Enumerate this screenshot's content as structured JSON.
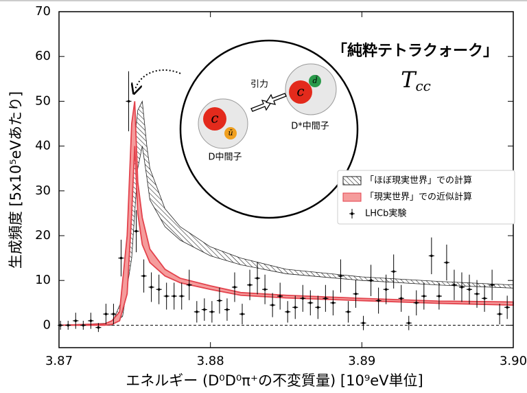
{
  "chart_data": {
    "type": "band-errorbar",
    "xlabel": "エネルギー (D⁰D⁰π⁺の不変質量) [10⁹eV単位]",
    "ylabel": "生成頻度 [5x10⁵eVあたり]",
    "xlim": [
      3.87,
      3.9
    ],
    "xticks": [
      3.87,
      3.88,
      3.89,
      {
        "value": 3.9,
        "label": "3.90"
      }
    ],
    "ylim": [
      -5,
      70
    ],
    "yticks": [
      0,
      10,
      20,
      30,
      40,
      50,
      60,
      70
    ],
    "hline": 0,
    "legend": "right",
    "series": [
      {
        "name": "「ほぼ現実世界」での計算",
        "kind": "band",
        "hatch": true,
        "color": "#222222",
        "x": [
          3.87,
          3.8735,
          3.8742,
          3.8748,
          3.8752,
          3.8755,
          3.8758,
          3.876,
          3.877,
          3.878,
          3.88,
          3.882,
          3.885,
          3.89,
          3.895,
          3.9
        ],
        "lower": [
          0,
          0,
          2,
          15,
          35,
          40,
          33,
          28,
          22,
          19,
          15.5,
          13.5,
          11.5,
          10,
          9,
          8.3
        ],
        "upper": [
          0,
          0.5,
          6,
          35,
          48,
          50,
          40,
          35,
          26,
          22,
          17.5,
          15,
          12.5,
          10.8,
          9.8,
          9
        ]
      },
      {
        "name": "「現実世界」での近似計算",
        "kind": "band",
        "hatch": false,
        "color": "#f59c9c",
        "edgecolor": "#e3424c",
        "x": [
          3.87,
          3.873,
          3.8735,
          3.874,
          3.8745,
          3.8748,
          3.875,
          3.8752,
          3.8755,
          3.876,
          3.877,
          3.878,
          3.88,
          3.882,
          3.885,
          3.89,
          3.895,
          3.9
        ],
        "lower": [
          0,
          0,
          0.2,
          1,
          7,
          25,
          40,
          25,
          18,
          14,
          11,
          9.5,
          8,
          6.7,
          6.1,
          5.5,
          4.9,
          4.5
        ],
        "upper": [
          0,
          0.3,
          1,
          3,
          20,
          45,
          50,
          32,
          24,
          17,
          12.5,
          10.5,
          8.8,
          7.3,
          6.7,
          6,
          5.4,
          5.2
        ]
      },
      {
        "name": "LHCb実験",
        "kind": "errorbar",
        "color": "#000000",
        "x": [
          3.8701,
          3.8706,
          3.8711,
          3.8716,
          3.8721,
          3.8726,
          3.8731,
          3.8736,
          3.8741,
          3.8746,
          3.8751,
          3.8756,
          3.8761,
          3.8766,
          3.8771,
          3.8776,
          3.8781,
          3.8786,
          3.8791,
          3.8796,
          3.8801,
          3.8806,
          3.8811,
          3.8816,
          3.8821,
          3.8826,
          3.8831,
          3.8836,
          3.8841,
          3.8846,
          3.8851,
          3.8856,
          3.8861,
          3.8866,
          3.8871,
          3.8876,
          3.8881,
          3.8886,
          3.8891,
          3.8896,
          3.8901,
          3.8906,
          3.8911,
          3.8916,
          3.8921,
          3.8926,
          3.8931,
          3.8936,
          3.8941,
          3.8946,
          3.8951,
          3.8956,
          3.8961,
          3.8966,
          3.8971,
          3.8976,
          3.8981,
          3.8986,
          3.8991,
          3.8996
        ],
        "y": [
          0,
          0,
          1,
          0,
          1,
          -0.5,
          2.5,
          2.5,
          15,
          50,
          21,
          11,
          8.5,
          8,
          6.5,
          6.5,
          6.5,
          9,
          3,
          3.5,
          3,
          5.5,
          3.5,
          8.5,
          2.5,
          9,
          10.5,
          8,
          4.5,
          6.5,
          3,
          4,
          6,
          5,
          4,
          6,
          5,
          11,
          3,
          7,
          0.5,
          10,
          5.5,
          8,
          12,
          6,
          0.5,
          5,
          6.5,
          15.5,
          6.5,
          14,
          9,
          8.5,
          8,
          7,
          6,
          9,
          2.5,
          4
        ],
        "err": [
          1,
          1,
          1.8,
          1,
          1.8,
          1,
          2.3,
          2.3,
          4.1,
          6.7,
          4.7,
          3.7,
          3.3,
          3.3,
          3,
          3,
          3,
          3.4,
          2.4,
          2.5,
          2.4,
          2.9,
          2.5,
          3.3,
          2.3,
          3.4,
          3.6,
          3.3,
          2.7,
          3,
          2.4,
          2.6,
          3,
          2.8,
          2.6,
          3,
          2.8,
          3.7,
          2.4,
          3.1,
          1.6,
          3.5,
          2.9,
          3.3,
          3.8,
          3,
          1.6,
          2.8,
          3,
          4.1,
          3,
          4,
          3.4,
          3.3,
          3.3,
          3.1,
          3,
          3.4,
          2.3,
          2.6
        ]
      }
    ],
    "annotations": {
      "title_note": "「純粋テトラクォーク」",
      "symbol": {
        "main": "T",
        "sub": "cc"
      },
      "diagram": {
        "attraction": "引力",
        "meson_d": "D中間子",
        "meson_dstar": "D*中間子",
        "quarks": [
          "c",
          "ū",
          "c",
          "d̄"
        ]
      }
    }
  }
}
